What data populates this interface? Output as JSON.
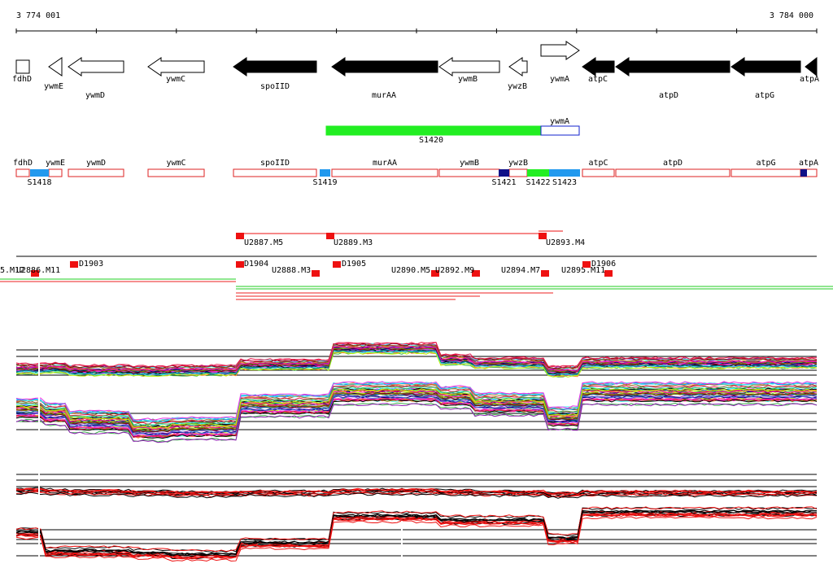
{
  "ruler": {
    "start": "3 774 001",
    "end": "3 784 000"
  },
  "genes": [
    {
      "label": "fdhD",
      "fill": "white"
    },
    {
      "label": "ywmE",
      "fill": "white",
      "direction": "left"
    },
    {
      "label": "ywmD",
      "fill": "white",
      "direction": "left"
    },
    {
      "label": "ywmC",
      "fill": "white",
      "direction": "left"
    },
    {
      "label": "spoIID",
      "fill": "black",
      "direction": "left"
    },
    {
      "label": "murAA",
      "fill": "black",
      "direction": "left"
    },
    {
      "label": "ywmB",
      "fill": "white",
      "direction": "left"
    },
    {
      "label": "ywzB",
      "fill": "white",
      "direction": "left"
    },
    {
      "label": "ywmA",
      "fill": "white",
      "direction": "right"
    },
    {
      "label": "atpC",
      "fill": "black",
      "direction": "left"
    },
    {
      "label": "atpD",
      "fill": "black",
      "direction": "left"
    },
    {
      "label": "atpG",
      "fill": "black",
      "direction": "left"
    },
    {
      "label": "atpA",
      "fill": "black",
      "direction": "left"
    }
  ],
  "transcripts": [
    {
      "label": "S1420",
      "color": "#22ee22"
    },
    {
      "label": "ywmA",
      "color": "#ffffff"
    }
  ],
  "annotation_boxes": [
    "fdhD",
    "ywmE",
    "ywmD",
    "ywmC",
    "spoIID",
    "murAA",
    "ywmB",
    "ywzB",
    "atpC",
    "atpD",
    "atpG",
    "atpA"
  ],
  "segments": [
    {
      "label": "S1418",
      "color": "#2299ee"
    },
    {
      "label": "S1419",
      "color": "#2299ee"
    },
    {
      "label": "S1421",
      "color": "#111188"
    },
    {
      "label": "S1422",
      "color": "#22ee22"
    },
    {
      "label": "S1423",
      "color": "#2299ee"
    }
  ],
  "features": [
    "5.M12",
    "U2886.M11",
    "D1903",
    "U2887.M5",
    "D1904",
    "U2888.M3",
    "U2889.M3",
    "D1905",
    "U2890.M5",
    "U2892.M9",
    "U2893.M4",
    "U2894.M7",
    "U2895.M11",
    "D1906"
  ]
}
